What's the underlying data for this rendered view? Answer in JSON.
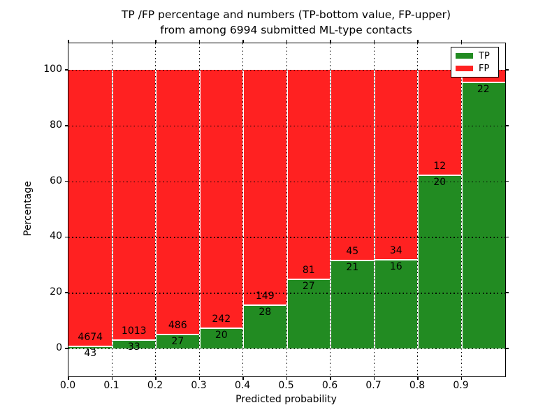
{
  "figure": {
    "title_line1": "TP /FP percentage and numbers (TP-bottom value, FP-upper)",
    "title_line2": "from among 6994 submitted ML-type contacts",
    "xlabel": "Predicted probability",
    "ylabel": "Percentage"
  },
  "axes": {
    "x_tick_labels": [
      "0.0",
      "0.1",
      "0.2",
      "0.3",
      "0.4",
      "0.5",
      "0.6",
      "0.7",
      "0.8",
      "0.9"
    ],
    "y_tick_labels": [
      "0",
      "20",
      "40",
      "60",
      "80",
      "100"
    ],
    "y_tick_values": [
      0,
      20,
      40,
      60,
      80,
      100
    ]
  },
  "legend": {
    "items": [
      {
        "label": "TP",
        "color": "#228b22"
      },
      {
        "label": "FP",
        "color": "#ff2121"
      }
    ]
  },
  "colors": {
    "tp": "#228b22",
    "fp": "#ff2121",
    "grid": "#000000",
    "frame": "#000000",
    "background": "#ffffff",
    "segment_edge": "#ffffff"
  },
  "chart_data": {
    "type": "bar",
    "stacked": true,
    "normalized": "each bar scaled to 100%",
    "title": "TP /FP percentage and numbers (TP-bottom value, FP-upper) from among 6994 submitted ML-type contacts",
    "xlabel": "Predicted probability",
    "ylabel": "Percentage",
    "total_contacts": 6994,
    "bin_edges": [
      0.0,
      0.1,
      0.2,
      0.3,
      0.4,
      0.5,
      0.6,
      0.7,
      0.8,
      0.9,
      1.0
    ],
    "series": [
      {
        "name": "TP",
        "color": "#228b22",
        "counts": [
          43,
          33,
          27,
          20,
          28,
          27,
          21,
          16,
          20,
          22
        ]
      },
      {
        "name": "FP",
        "color": "#ff2121",
        "counts": [
          4674,
          1013,
          486,
          242,
          149,
          81,
          45,
          34,
          12,
          1
        ]
      }
    ],
    "tp_percent": [
      0.91,
      3.15,
      5.26,
      7.63,
      15.82,
      25.0,
      31.82,
      32.0,
      62.5,
      95.65
    ],
    "tp_labels": [
      "43",
      "33",
      "27",
      "20",
      "28",
      "27",
      "21",
      "16",
      "20",
      "22"
    ],
    "fp_labels": [
      "4674",
      "1013",
      "486",
      "242",
      "149",
      "81",
      "45",
      "34",
      "12",
      ""
    ],
    "ylim_percent": [
      -10.9,
      110.5
    ],
    "grid": true,
    "grid_style": "dotted",
    "legend_position": "upper right"
  }
}
